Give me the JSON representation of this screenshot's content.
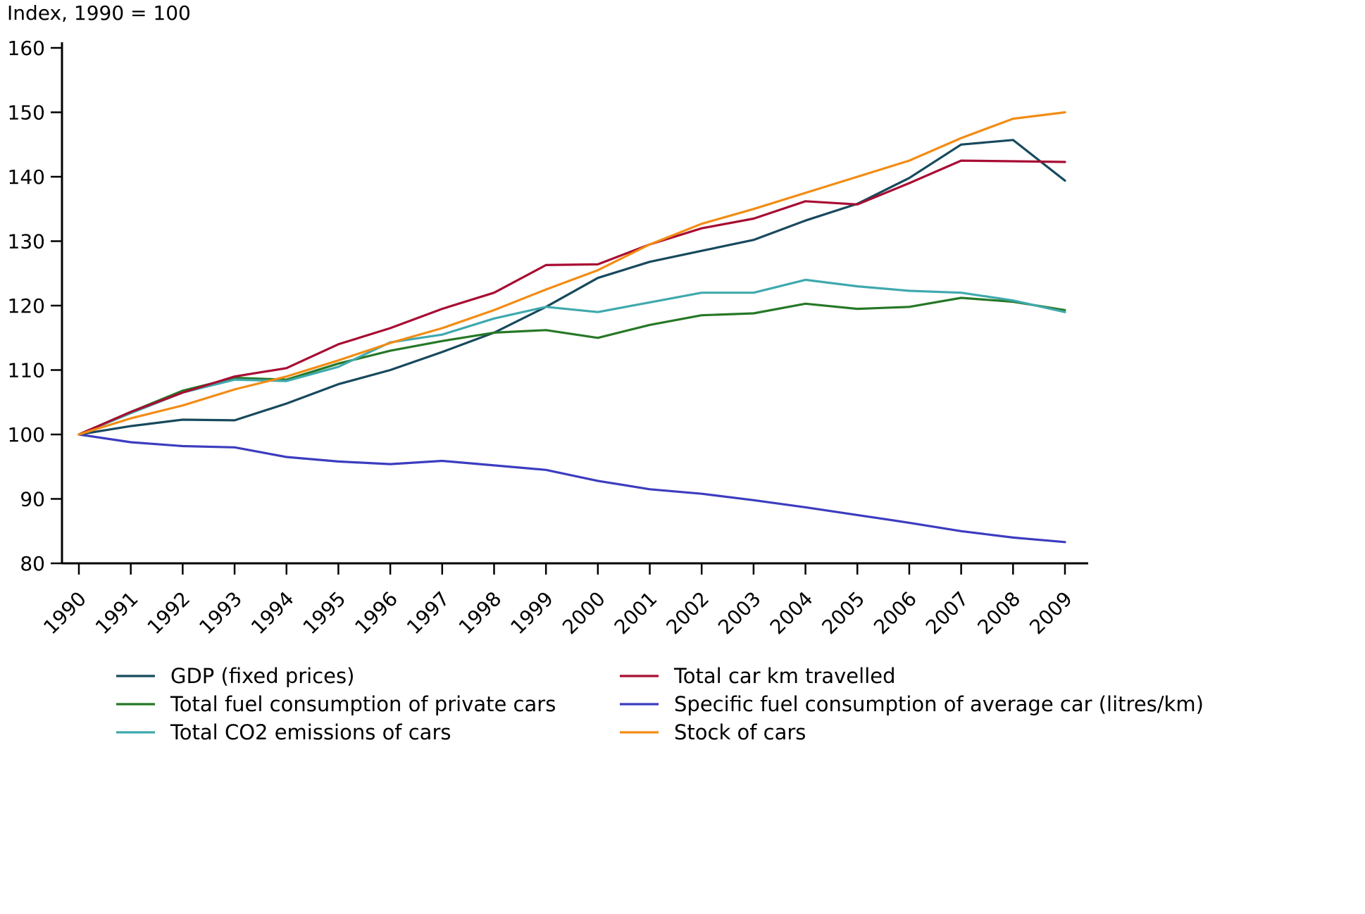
{
  "chart_data": {
    "type": "line",
    "title": "Index, 1990 = 100",
    "x": [
      1990,
      1991,
      1992,
      1993,
      1994,
      1995,
      1996,
      1997,
      1998,
      1999,
      2000,
      2001,
      2002,
      2003,
      2004,
      2005,
      2006,
      2007,
      2008,
      2009
    ],
    "ylim": [
      80,
      160
    ],
    "ytick_step": 10,
    "grid": false,
    "legend_position": "bottom-two-columns",
    "axis_color": "#000000",
    "series": [
      {
        "name": "GDP (fixed prices)",
        "color": "#17495d",
        "values": [
          100,
          101.3,
          102.3,
          102.2,
          104.8,
          107.8,
          110.0,
          112.8,
          115.8,
          119.8,
          124.3,
          126.8,
          128.5,
          130.2,
          133.2,
          135.8,
          139.8,
          145.0,
          145.7,
          139.4
        ]
      },
      {
        "name": "Total fuel consumption of private cars",
        "color": "#267826",
        "values": [
          100,
          103.5,
          106.8,
          108.8,
          108.5,
          111.0,
          113.0,
          114.5,
          115.8,
          116.2,
          115.0,
          117.0,
          118.5,
          118.8,
          120.3,
          119.5,
          119.8,
          121.2,
          120.6,
          119.3
        ]
      },
      {
        "name": "Total CO2 emissions of cars",
        "color": "#3fa9ad",
        "values": [
          100,
          103.3,
          106.5,
          108.5,
          108.3,
          110.5,
          114.3,
          115.5,
          118.0,
          119.8,
          119.0,
          120.5,
          122.0,
          122.0,
          124.0,
          123.0,
          122.3,
          122.0,
          120.8,
          119.0
        ]
      },
      {
        "name": "Total car km travelled",
        "color": "#a80c32",
        "values": [
          100,
          103.5,
          106.5,
          109.0,
          110.3,
          114.0,
          116.5,
          119.5,
          122.0,
          126.3,
          126.4,
          129.5,
          132.0,
          133.5,
          136.2,
          135.7,
          139.0,
          142.5,
          142.4,
          142.3
        ]
      },
      {
        "name": "Specific fuel consumption of average car (litres/km)",
        "color": "#3c3cc0",
        "values": [
          100,
          98.8,
          98.2,
          98.0,
          96.5,
          95.8,
          95.4,
          95.9,
          95.2,
          94.5,
          92.8,
          91.5,
          90.8,
          89.8,
          88.7,
          87.5,
          86.3,
          85.0,
          84.0,
          83.3
        ]
      },
      {
        "name": "Stock of cars",
        "color": "#f28c14",
        "values": [
          100,
          102.5,
          104.5,
          107.0,
          109.0,
          111.5,
          114.2,
          116.5,
          119.3,
          122.5,
          125.5,
          129.5,
          132.7,
          135.0,
          137.5,
          140.0,
          142.5,
          146.0,
          149.0,
          150.0
        ]
      }
    ]
  }
}
